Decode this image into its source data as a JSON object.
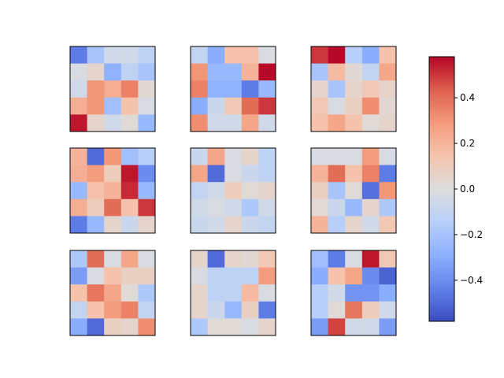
{
  "chart_data": {
    "type": "heatmap",
    "layout": "3x3 grid of 5x5 heatmaps with shared colorbar",
    "colormap": "coolwarm",
    "vmin": -0.58,
    "vmax": 0.58,
    "grid": false,
    "axes_ticks": false,
    "colorbar": {
      "placement": "right",
      "ticks": [
        -0.4,
        -0.2,
        0.0,
        0.2,
        0.4
      ],
      "tick_labels": [
        "−0.4",
        "−0.2",
        "0.0",
        "0.2",
        "0.4"
      ]
    },
    "panels": [
      {
        "name": "panel-r1c1",
        "values": [
          [
            -0.45,
            -0.2,
            -0.05,
            -0.05,
            -0.12
          ],
          [
            -0.02,
            0.05,
            -0.28,
            -0.12,
            -0.2
          ],
          [
            -0.05,
            0.3,
            0.22,
            0.35,
            0.03
          ],
          [
            0.22,
            0.3,
            -0.22,
            0.15,
            -0.02
          ],
          [
            0.55,
            0.05,
            -0.05,
            0.02,
            -0.25
          ]
        ]
      },
      {
        "name": "panel-r1c2",
        "values": [
          [
            -0.1,
            -0.3,
            0.15,
            0.15,
            -0.02
          ],
          [
            0.3,
            -0.25,
            -0.25,
            0.2,
            0.57
          ],
          [
            0.35,
            -0.28,
            -0.28,
            -0.45,
            -0.25
          ],
          [
            -0.3,
            -0.08,
            0.12,
            0.4,
            0.5
          ],
          [
            0.32,
            -0.05,
            -0.05,
            0.25,
            -0.05
          ]
        ]
      },
      {
        "name": "panel-r1c3",
        "values": [
          [
            0.5,
            0.57,
            -0.15,
            -0.3,
            0.15
          ],
          [
            -0.2,
            0.18,
            0.03,
            -0.1,
            0.25
          ],
          [
            0.05,
            -0.2,
            0.05,
            0.12,
            0.05
          ],
          [
            0.12,
            -0.02,
            0.08,
            0.32,
            0.03
          ],
          [
            0.15,
            0.25,
            0.15,
            0.02,
            0.05
          ]
        ]
      },
      {
        "name": "panel-r2c1",
        "values": [
          [
            0.2,
            -0.5,
            0.3,
            -0.22,
            -0.15
          ],
          [
            0.22,
            0.28,
            0.1,
            0.55,
            -0.4
          ],
          [
            -0.25,
            0.15,
            0.2,
            0.52,
            -0.25
          ],
          [
            0.22,
            0.1,
            0.4,
            0.15,
            0.5
          ],
          [
            -0.45,
            -0.25,
            0.05,
            -0.08,
            0.05
          ]
        ]
      },
      {
        "name": "panel-r2c2",
        "values": [
          [
            -0.08,
            0.25,
            -0.02,
            0.05,
            -0.12
          ],
          [
            0.25,
            -0.5,
            -0.02,
            -0.08,
            -0.12
          ],
          [
            -0.1,
            -0.05,
            0.1,
            0.02,
            0.05
          ],
          [
            -0.05,
            -0.02,
            -0.05,
            -0.18,
            -0.05
          ],
          [
            -0.08,
            -0.05,
            0.05,
            -0.08,
            -0.1
          ]
        ]
      },
      {
        "name": "panel-r2c3",
        "values": [
          [
            -0.02,
            -0.02,
            -0.02,
            0.28,
            -0.02
          ],
          [
            0.2,
            0.4,
            0.15,
            0.35,
            -0.45
          ],
          [
            0.08,
            -0.2,
            0.02,
            -0.48,
            0.3
          ],
          [
            0.02,
            -0.08,
            -0.25,
            0.05,
            -0.18
          ],
          [
            0.2,
            -0.15,
            0.05,
            -0.05,
            0.12
          ]
        ]
      },
      {
        "name": "panel-r3c1",
        "values": [
          [
            -0.18,
            0.4,
            -0.02,
            0.25,
            -0.02
          ],
          [
            -0.35,
            -0.02,
            0.15,
            0.08,
            0.08
          ],
          [
            0.15,
            0.38,
            0.25,
            0.02,
            -0.18
          ],
          [
            -0.1,
            0.15,
            0.28,
            0.35,
            -0.1
          ],
          [
            -0.3,
            -0.5,
            0.08,
            0.05,
            0.32
          ]
        ]
      },
      {
        "name": "panel-r3c2",
        "values": [
          [
            0.05,
            -0.5,
            0.05,
            0.03,
            0.12
          ],
          [
            -0.02,
            -0.12,
            -0.12,
            -0.12,
            0.28
          ],
          [
            0.05,
            -0.12,
            -0.12,
            0.18,
            -0.02
          ],
          [
            0.05,
            -0.08,
            -0.25,
            0.08,
            -0.45
          ],
          [
            -0.18,
            0.02,
            0.02,
            -0.02,
            0.05
          ]
        ]
      },
      {
        "name": "panel-r3c3",
        "values": [
          [
            -0.22,
            -0.45,
            -0.02,
            0.55,
            0.12
          ],
          [
            -0.3,
            0.15,
            0.25,
            -0.4,
            -0.52
          ],
          [
            -0.15,
            -0.05,
            -0.38,
            -0.38,
            -0.3
          ],
          [
            -0.15,
            0.02,
            0.38,
            0.1,
            -0.05
          ],
          [
            -0.35,
            0.48,
            -0.05,
            -0.05,
            -0.35
          ]
        ]
      }
    ]
  }
}
